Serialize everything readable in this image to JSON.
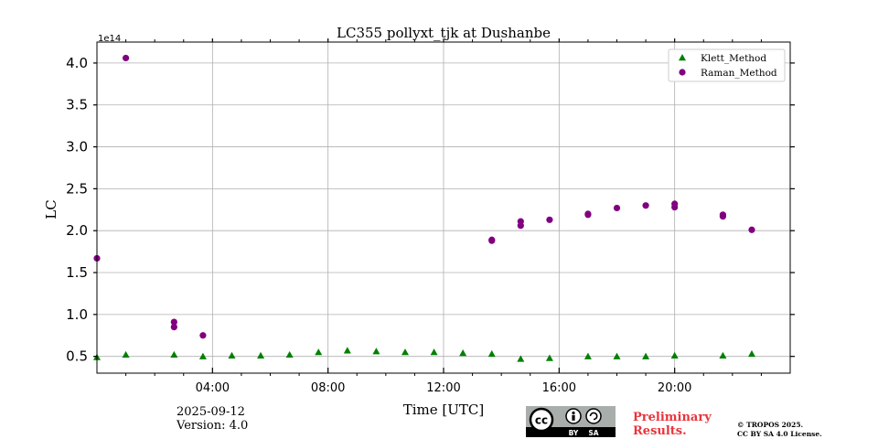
{
  "chart_data": {
    "type": "scatter",
    "title": "LC355 pollyxt_tjk at Dushanbe",
    "xlabel": "Time [UTC]",
    "ylabel": "LC",
    "y_scale_label": "1e14",
    "xlim": [
      0,
      24
    ],
    "ylim": [
      0.3,
      4.25
    ],
    "x_ticks": [
      {
        "value": 4,
        "label": "04:00"
      },
      {
        "value": 8,
        "label": "08:00"
      },
      {
        "value": 12,
        "label": "12:00"
      },
      {
        "value": 16,
        "label": "16:00"
      },
      {
        "value": 20,
        "label": "20:00"
      }
    ],
    "y_ticks": [
      {
        "value": 0.5,
        "label": "0.5"
      },
      {
        "value": 1.0,
        "label": "1.0"
      },
      {
        "value": 1.5,
        "label": "1.5"
      },
      {
        "value": 2.0,
        "label": "2.0"
      },
      {
        "value": 2.5,
        "label": "2.5"
      },
      {
        "value": 3.0,
        "label": "3.0"
      },
      {
        "value": 3.5,
        "label": "3.5"
      },
      {
        "value": 4.0,
        "label": "4.0"
      }
    ],
    "grid": true,
    "legend_position": "top-right",
    "series": [
      {
        "name": "Klett_Method",
        "marker": "triangle",
        "color": "#008000",
        "points": [
          [
            0.0,
            0.49
          ],
          [
            1.0,
            0.52
          ],
          [
            2.67,
            0.52
          ],
          [
            3.67,
            0.5
          ],
          [
            4.67,
            0.51
          ],
          [
            5.67,
            0.51
          ],
          [
            6.67,
            0.52
          ],
          [
            7.67,
            0.55
          ],
          [
            8.67,
            0.57
          ],
          [
            9.67,
            0.56
          ],
          [
            10.67,
            0.55
          ],
          [
            11.67,
            0.55
          ],
          [
            12.67,
            0.54
          ],
          [
            13.67,
            0.53
          ],
          [
            14.67,
            0.47
          ],
          [
            15.67,
            0.48
          ],
          [
            17.0,
            0.5
          ],
          [
            18.0,
            0.5
          ],
          [
            19.0,
            0.5
          ],
          [
            20.0,
            0.51
          ],
          [
            21.67,
            0.51
          ],
          [
            22.67,
            0.53
          ]
        ]
      },
      {
        "name": "Raman_Method",
        "marker": "circle",
        "color": "#800080",
        "points": [
          [
            0.0,
            1.67
          ],
          [
            1.0,
            4.06
          ],
          [
            2.67,
            0.91
          ],
          [
            2.67,
            0.85
          ],
          [
            3.67,
            0.75
          ],
          [
            13.67,
            1.88
          ],
          [
            13.67,
            1.89
          ],
          [
            14.67,
            2.11
          ],
          [
            14.67,
            2.06
          ],
          [
            15.67,
            2.13
          ],
          [
            17.0,
            2.19
          ],
          [
            17.0,
            2.2
          ],
          [
            18.0,
            2.27
          ],
          [
            19.0,
            2.3
          ],
          [
            20.0,
            2.32
          ],
          [
            20.0,
            2.28
          ],
          [
            21.67,
            2.19
          ],
          [
            21.67,
            2.17
          ],
          [
            22.67,
            2.01
          ]
        ]
      }
    ]
  },
  "footer": {
    "date": "2025-09-12",
    "version": "Version: 4.0",
    "preliminary_line1": "Preliminary",
    "preliminary_line2": "Results.",
    "license_line1": "© TROPOS 2025.",
    "license_line2": "CC BY SA 4.0 License.",
    "badge_by": "BY",
    "badge_sa": "SA",
    "badge_cc": "cc"
  }
}
